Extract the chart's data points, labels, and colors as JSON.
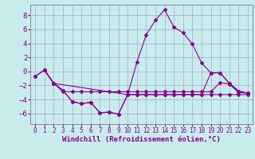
{
  "background_color": "#c8ecec",
  "grid_color": "#aaaacc",
  "line_color": "#880088",
  "xlabel": "Windchill (Refroidissement éolien,°C)",
  "xlabel_fontsize": 6.5,
  "ytick_fontsize": 6.5,
  "xtick_fontsize": 5.5,
  "ylim": [
    -7.5,
    9.5
  ],
  "xlim": [
    -0.5,
    23.5
  ],
  "yticks": [
    -6,
    -4,
    -2,
    0,
    2,
    4,
    6,
    8
  ],
  "xticks": [
    0,
    1,
    2,
    3,
    4,
    5,
    6,
    7,
    8,
    9,
    10,
    11,
    12,
    13,
    14,
    15,
    16,
    17,
    18,
    19,
    20,
    21,
    22,
    23
  ],
  "line1_x": [
    0,
    1,
    2,
    3,
    4,
    5,
    6,
    7,
    8,
    9,
    10,
    11,
    12,
    13,
    14,
    15,
    16,
    17,
    18,
    19,
    20,
    21,
    22,
    23
  ],
  "line1_y": [
    -0.7,
    0.2,
    -1.7,
    -2.7,
    -4.3,
    -4.6,
    -4.4,
    -5.9,
    -5.8,
    -6.1,
    -3.3,
    1.3,
    5.2,
    7.3,
    8.8,
    6.3,
    5.5,
    3.9,
    1.2,
    -0.2,
    -0.2,
    -1.7,
    -2.8,
    -3.1
  ],
  "line2_x": [
    0,
    1,
    2,
    3,
    4,
    5,
    6,
    7,
    8,
    9,
    10,
    11,
    12,
    13,
    14,
    15,
    16,
    17,
    18,
    19,
    20,
    21,
    22,
    23
  ],
  "line2_y": [
    -0.7,
    0.2,
    -1.7,
    -2.9,
    -2.9,
    -2.9,
    -2.9,
    -2.9,
    -2.9,
    -2.9,
    -2.9,
    -2.9,
    -2.9,
    -2.9,
    -2.9,
    -2.9,
    -2.9,
    -2.9,
    -2.9,
    -2.9,
    -1.6,
    -1.8,
    -3.0,
    -3.1
  ],
  "line3_x": [
    1,
    2,
    10,
    11,
    12,
    13,
    14,
    15,
    16,
    17,
    18,
    19,
    20,
    21,
    22,
    23
  ],
  "line3_y": [
    0.2,
    -1.7,
    -3.3,
    -3.3,
    -3.3,
    -3.3,
    -3.3,
    -3.3,
    -3.3,
    -3.3,
    -3.3,
    -0.2,
    -0.2,
    -1.7,
    -2.8,
    -3.1
  ],
  "line4_x": [
    1,
    2,
    3,
    4,
    5,
    6,
    7,
    8,
    9,
    10,
    11,
    12,
    13,
    14,
    15,
    16,
    17,
    18,
    19,
    20,
    21,
    22,
    23
  ],
  "line4_y": [
    0.2,
    -1.7,
    -2.7,
    -4.3,
    -4.6,
    -4.4,
    -5.9,
    -5.8,
    -6.1,
    -3.3,
    -3.3,
    -3.3,
    -3.3,
    -3.3,
    -3.3,
    -3.3,
    -3.3,
    -3.3,
    -3.3,
    -3.3,
    -3.3,
    -3.3,
    -3.3
  ],
  "marker": "D",
  "markersize": 2.0
}
